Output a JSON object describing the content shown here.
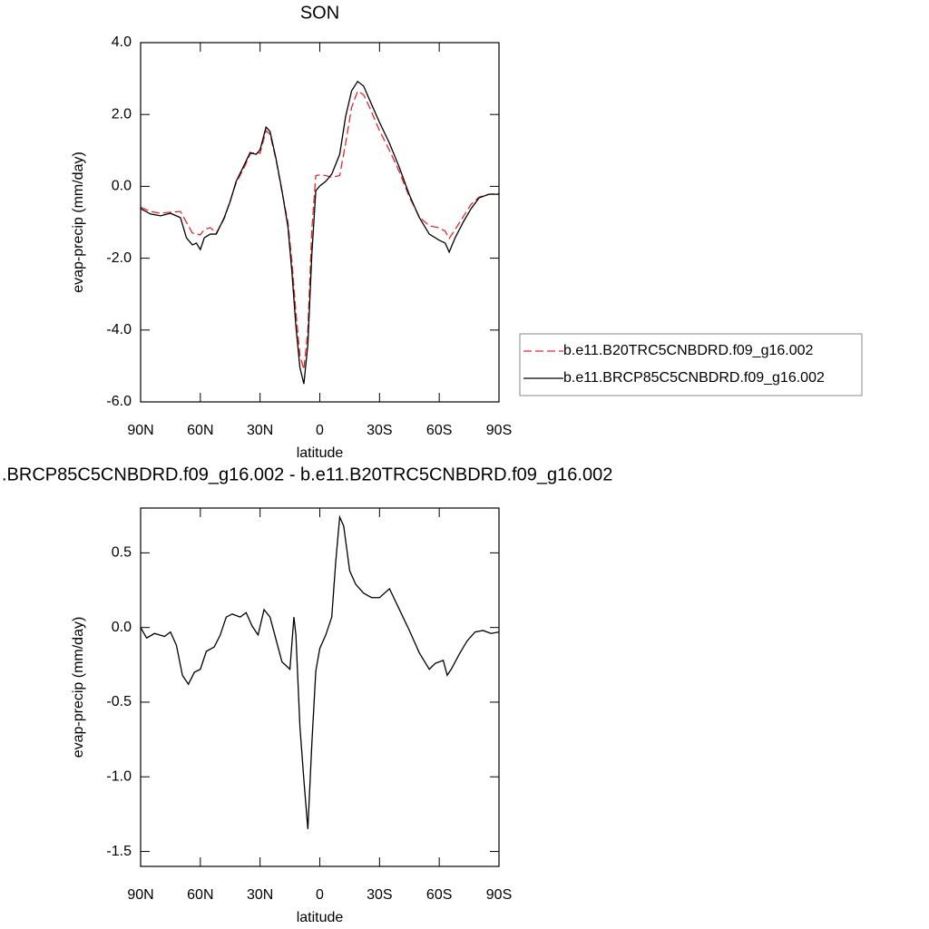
{
  "chart_data": [
    {
      "type": "line",
      "title": "SON",
      "xlabel": "latitude",
      "ylabel": "evap-precip (mm/day)",
      "xlim": [
        90,
        -90
      ],
      "ylim": [
        -6,
        4
      ],
      "xticks": [
        {
          "value": 90,
          "label": "90N"
        },
        {
          "value": 60,
          "label": "60N"
        },
        {
          "value": 30,
          "label": "30N"
        },
        0,
        {
          "value": -30,
          "label": "30S"
        },
        {
          "value": -60,
          "label": "60S"
        },
        {
          "value": -90,
          "label": "90S"
        }
      ],
      "yticks": [
        {
          "value": 4,
          "label": "4.0"
        },
        {
          "value": 2,
          "label": "2.0"
        },
        {
          "value": 0,
          "label": "0.0"
        },
        {
          "value": -2,
          "label": "-2.0"
        },
        {
          "value": -4,
          "label": "-4.0"
        },
        {
          "value": -6,
          "label": "-6.0"
        }
      ],
      "legend": "outside-right",
      "x": [
        90,
        85,
        80,
        75,
        70,
        67,
        64,
        62,
        60,
        58,
        55,
        52,
        48,
        45,
        42,
        38,
        35,
        32,
        30,
        27,
        25,
        22,
        19,
        16,
        14,
        12,
        10,
        8,
        6,
        4,
        2,
        0,
        -3,
        -6,
        -10,
        -13,
        -16,
        -19,
        -22,
        -25,
        -30,
        -35,
        -40,
        -45,
        -50,
        -55,
        -60,
        -63,
        -65,
        -68,
        -72,
        -76,
        -80,
        -85,
        -90
      ],
      "series": [
        {
          "name": "b.e11.B20TRC5CNBDRD.f09_g16.002",
          "color": "#e8262a",
          "dashed": true,
          "values": [
            -0.58,
            -0.7,
            -0.75,
            -0.72,
            -0.7,
            -1.0,
            -1.3,
            -1.32,
            -1.35,
            -1.2,
            -1.15,
            -1.3,
            -0.9,
            -0.4,
            0.1,
            0.52,
            0.9,
            0.95,
            0.92,
            1.55,
            1.45,
            0.75,
            -0.15,
            -1.0,
            -2.1,
            -3.5,
            -4.7,
            -5.1,
            -4.0,
            -1.2,
            0.3,
            0.32,
            0.3,
            0.25,
            0.3,
            1.2,
            2.2,
            2.65,
            2.55,
            2.2,
            1.55,
            1.0,
            0.4,
            -0.3,
            -0.85,
            -1.1,
            -1.15,
            -1.25,
            -1.45,
            -1.2,
            -0.85,
            -0.5,
            -0.3,
            -0.22,
            -0.2
          ]
        },
        {
          "name": "b.e11.BRCP85C5CNBDRD.f09_g16.002",
          "color": "#000000",
          "dashed": false,
          "values": [
            -0.62,
            -0.77,
            -0.82,
            -0.75,
            -0.87,
            -1.43,
            -1.63,
            -1.58,
            -1.76,
            -1.43,
            -1.33,
            -1.33,
            -0.87,
            -0.42,
            0.14,
            0.59,
            0.94,
            0.89,
            1.02,
            1.65,
            1.53,
            0.77,
            -0.12,
            -1.13,
            -2.39,
            -3.9,
            -5.04,
            -5.5,
            -4.41,
            -1.89,
            -0.12,
            0.01,
            0.14,
            0.34,
            0.89,
            1.95,
            2.66,
            2.92,
            2.79,
            2.41,
            1.78,
            1.2,
            0.52,
            -0.24,
            -0.87,
            -1.33,
            -1.5,
            -1.58,
            -1.83,
            -1.43,
            -1.0,
            -0.62,
            -0.32,
            -0.22,
            -0.22
          ]
        }
      ]
    },
    {
      "type": "line",
      "title": ".BRCP85C5CNBDRD.f09_g16.002 - b.e11.B20TRC5CNBDRD.f09_g16.002",
      "xlabel": "latitude",
      "ylabel": "evap-precip (mm/day)",
      "xlim": [
        90,
        -90
      ],
      "ylim": [
        -1.6,
        0.8
      ],
      "xticks": [
        {
          "value": 90,
          "label": "90N"
        },
        {
          "value": 60,
          "label": "60N"
        },
        {
          "value": 30,
          "label": "30N"
        },
        0,
        {
          "value": -30,
          "label": "30S"
        },
        {
          "value": -60,
          "label": "60S"
        },
        {
          "value": -90,
          "label": "90S"
        }
      ],
      "yticks": [
        0.5,
        {
          "value": 0,
          "label": "0.0"
        },
        -0.5,
        {
          "value": -1,
          "label": "-1.0"
        },
        -1.5
      ],
      "x": [
        90,
        87,
        83,
        78,
        75,
        72,
        69,
        66,
        63,
        60,
        57,
        53,
        50,
        47,
        44,
        40,
        37,
        34,
        31,
        28,
        25,
        22,
        19,
        15,
        13,
        12,
        10,
        8,
        6,
        4,
        2,
        0,
        -3,
        -6,
        -8,
        -10,
        -12,
        -15,
        -18,
        -22,
        -26,
        -30,
        -35,
        -40,
        -45,
        -50,
        -55,
        -58,
        -62,
        -64,
        -66,
        -70,
        -74,
        -78,
        -82,
        -86,
        -90
      ],
      "series": [
        {
          "color": "#000000",
          "dashed": false,
          "values": [
            0,
            -0.07,
            -0.04,
            -0.06,
            -0.03,
            -0.12,
            -0.32,
            -0.38,
            -0.3,
            -0.28,
            -0.16,
            -0.13,
            -0.05,
            0.07,
            0.09,
            0.07,
            0.1,
            0.01,
            -0.05,
            0.12,
            0.07,
            -0.08,
            -0.23,
            -0.28,
            0.07,
            -0.05,
            -0.66,
            -1.02,
            -1.35,
            -0.78,
            -0.29,
            -0.14,
            -0.05,
            0.07,
            0.44,
            0.74,
            0.68,
            0.38,
            0.29,
            0.23,
            0.2,
            0.2,
            0.26,
            0.12,
            -0.02,
            -0.17,
            -0.28,
            -0.24,
            -0.22,
            -0.32,
            -0.28,
            -0.18,
            -0.09,
            -0.03,
            -0.02,
            -0.04,
            -0.03
          ]
        }
      ]
    }
  ]
}
